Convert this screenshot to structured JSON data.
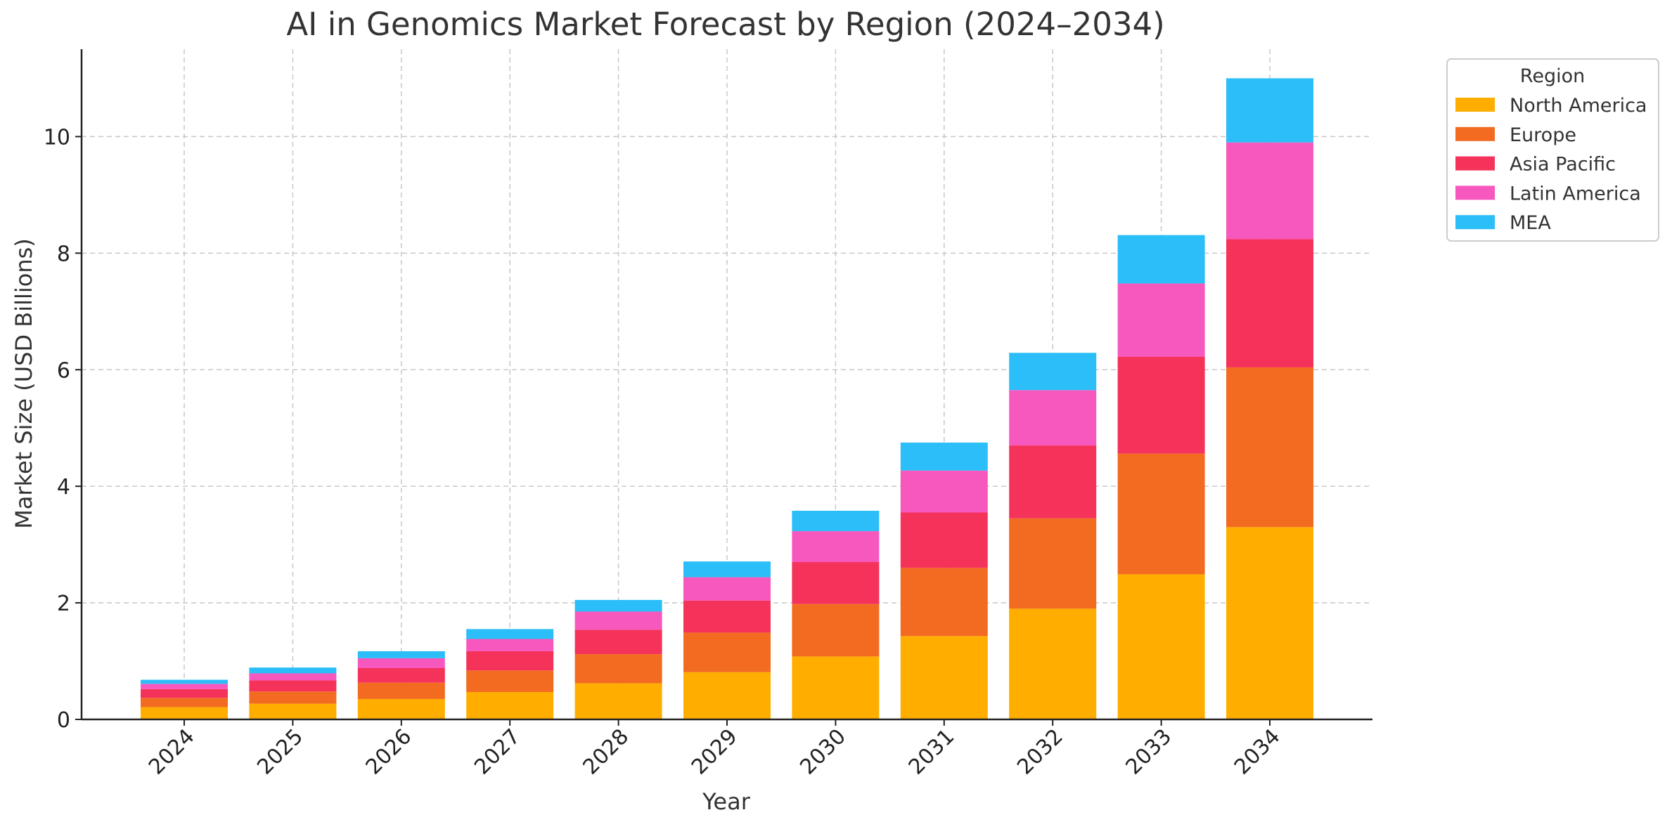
{
  "chart_data": {
    "type": "bar",
    "stacked": true,
    "title": "AI in Genomics Market Forecast by Region (2024–2034)",
    "xlabel": "Year",
    "ylabel": "Market Size (USD Billions)",
    "categories": [
      "2024",
      "2025",
      "2026",
      "2027",
      "2028",
      "2029",
      "2030",
      "2031",
      "2032",
      "2033",
      "2034"
    ],
    "ylim": [
      0,
      11.5
    ],
    "yticks": [
      0,
      2,
      4,
      6,
      8,
      10
    ],
    "grid": true,
    "legend": {
      "title": "Region",
      "placement": "outside-top-right"
    },
    "series": [
      {
        "name": "North America",
        "color": "#FFAE00",
        "values": [
          0.21,
          0.27,
          0.35,
          0.47,
          0.62,
          0.81,
          1.08,
          1.43,
          1.9,
          2.49,
          3.3
        ]
      },
      {
        "name": "Europe",
        "color": "#F26B21",
        "values": [
          0.16,
          0.21,
          0.28,
          0.37,
          0.5,
          0.68,
          0.9,
          1.17,
          1.55,
          2.07,
          2.74
        ]
      },
      {
        "name": "Asia Pacific",
        "color": "#F5325A",
        "values": [
          0.15,
          0.19,
          0.25,
          0.33,
          0.42,
          0.55,
          0.72,
          0.95,
          1.25,
          1.66,
          2.2
        ]
      },
      {
        "name": "Latin America",
        "color": "#F758BE",
        "values": [
          0.09,
          0.12,
          0.17,
          0.21,
          0.31,
          0.4,
          0.53,
          0.72,
          0.95,
          1.26,
          1.66
        ]
      },
      {
        "name": "MEA",
        "color": "#2BBEF8",
        "values": [
          0.07,
          0.1,
          0.12,
          0.17,
          0.2,
          0.27,
          0.35,
          0.48,
          0.64,
          0.83,
          1.1
        ]
      }
    ]
  }
}
